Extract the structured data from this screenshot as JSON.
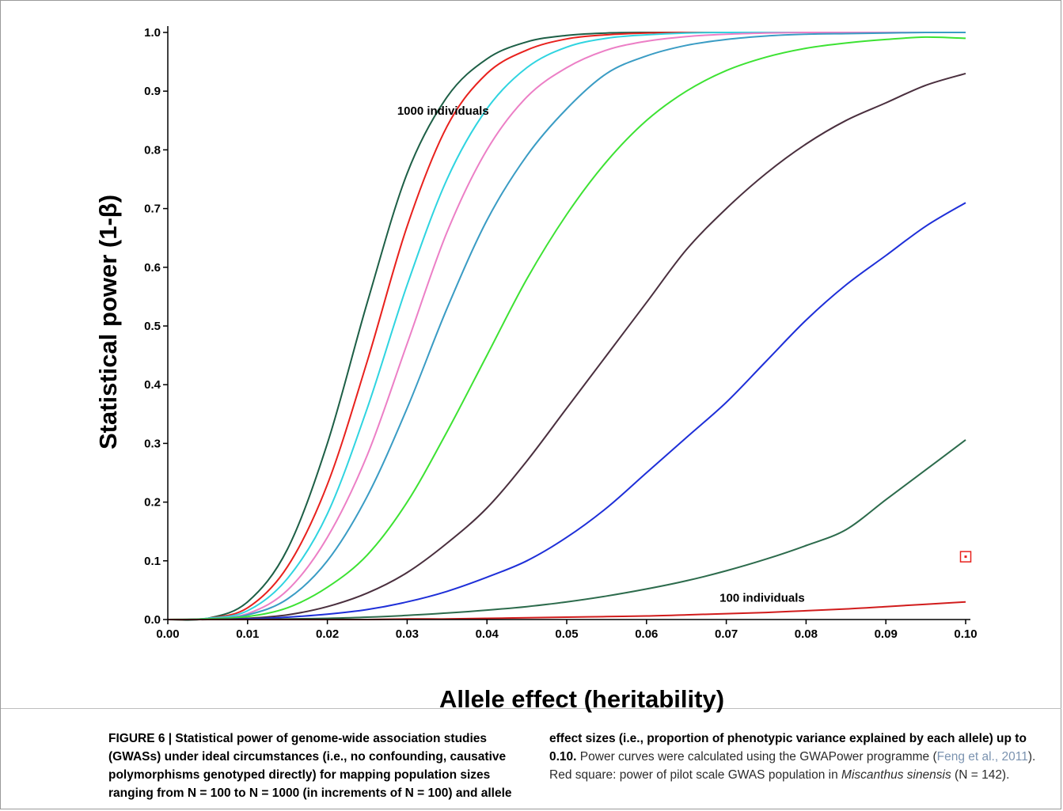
{
  "chart_data": {
    "type": "line",
    "xlabel": "Allele effect (heritability)",
    "ylabel": "Statistical power (1-β)",
    "xlim": [
      0.0,
      0.1
    ],
    "ylim": [
      0.0,
      1.0
    ],
    "xticks": [
      "0.00",
      "0.01",
      "0.02",
      "0.03",
      "0.04",
      "0.05",
      "0.06",
      "0.07",
      "0.08",
      "0.09",
      "0.10"
    ],
    "yticks": [
      "0.0",
      "0.1",
      "0.2",
      "0.3",
      "0.4",
      "0.5",
      "0.6",
      "0.7",
      "0.8",
      "0.9",
      "1.0"
    ],
    "grid": false,
    "x": [
      0.0,
      0.005,
      0.01,
      0.015,
      0.02,
      0.025,
      0.03,
      0.035,
      0.04,
      0.045,
      0.05,
      0.055,
      0.06,
      0.065,
      0.07,
      0.075,
      0.08,
      0.085,
      0.09,
      0.095,
      0.1
    ],
    "series": [
      {
        "color": "#1d5f46",
        "values": [
          0,
          0.002,
          0.03,
          0.12,
          0.3,
          0.54,
          0.76,
          0.89,
          0.955,
          0.984,
          0.995,
          0.999,
          1.0,
          1.0,
          1.0,
          1.0,
          1.0,
          1.0,
          1.0,
          1.0,
          1.0
        ]
      },
      {
        "color": "#e8211d",
        "values": [
          0,
          0.002,
          0.02,
          0.09,
          0.23,
          0.44,
          0.67,
          0.84,
          0.93,
          0.97,
          0.989,
          0.996,
          0.999,
          1.0,
          1.0,
          1.0,
          1.0,
          1.0,
          1.0,
          1.0,
          1.0
        ]
      },
      {
        "color": "#2fd4e0",
        "values": [
          0,
          0.002,
          0.015,
          0.07,
          0.18,
          0.36,
          0.57,
          0.75,
          0.87,
          0.94,
          0.975,
          0.99,
          0.996,
          0.999,
          1.0,
          1.0,
          1.0,
          1.0,
          1.0,
          1.0,
          1.0
        ]
      },
      {
        "color": "#ec7fc6",
        "values": [
          0,
          0.001,
          0.01,
          0.05,
          0.14,
          0.28,
          0.47,
          0.66,
          0.8,
          0.89,
          0.94,
          0.97,
          0.985,
          0.993,
          0.997,
          0.999,
          1.0,
          1.0,
          1.0,
          1.0,
          1.0
        ]
      },
      {
        "color": "#3a9cc4",
        "values": [
          0,
          0.001,
          0.008,
          0.035,
          0.1,
          0.21,
          0.36,
          0.53,
          0.68,
          0.79,
          0.87,
          0.93,
          0.96,
          0.978,
          0.988,
          0.994,
          0.997,
          0.998,
          0.999,
          1.0,
          1.0
        ]
      },
      {
        "color": "#3de233",
        "values": [
          0,
          0.001,
          0.005,
          0.02,
          0.055,
          0.11,
          0.2,
          0.32,
          0.45,
          0.58,
          0.69,
          0.78,
          0.85,
          0.9,
          0.935,
          0.958,
          0.973,
          0.982,
          0.988,
          0.992,
          0.99
        ]
      },
      {
        "color": "#4a2f3e",
        "values": [
          0,
          0.0,
          0.002,
          0.008,
          0.022,
          0.045,
          0.08,
          0.13,
          0.19,
          0.27,
          0.36,
          0.45,
          0.54,
          0.63,
          0.7,
          0.76,
          0.81,
          0.85,
          0.88,
          0.91,
          0.93
        ]
      },
      {
        "color": "#1e2fd8",
        "values": [
          0,
          0.0,
          0.001,
          0.004,
          0.009,
          0.017,
          0.03,
          0.048,
          0.072,
          0.1,
          0.14,
          0.19,
          0.25,
          0.31,
          0.37,
          0.44,
          0.51,
          0.57,
          0.62,
          0.67,
          0.71
        ]
      },
      {
        "color": "#2c6b4c",
        "values": [
          0,
          0.0,
          0.0,
          0.001,
          0.002,
          0.004,
          0.007,
          0.011,
          0.016,
          0.022,
          0.03,
          0.04,
          0.052,
          0.066,
          0.083,
          0.103,
          0.126,
          0.153,
          0.204,
          0.255,
          0.306
        ]
      },
      {
        "color": "#d11c1c",
        "values": [
          0,
          0.0,
          0.0,
          0.0,
          0.0,
          0.0,
          0.001,
          0.001,
          0.002,
          0.003,
          0.004,
          0.005,
          0.006,
          0.008,
          0.01,
          0.012,
          0.015,
          0.018,
          0.022,
          0.026,
          0.03
        ]
      }
    ],
    "annotations": [
      {
        "text": "1000 individuals",
        "x": 0.0345,
        "y": 0.86
      },
      {
        "text": "100 individuals",
        "x": 0.0745,
        "y": 0.03
      }
    ],
    "marker": {
      "shape": "square",
      "color": "#e8211d",
      "x": 0.1,
      "y": 0.107
    }
  },
  "caption": {
    "col1_bold": "FIGURE 6 | Statistical power of genome-wide association studies (GWASs) under ideal circumstances (i.e., no confounding, causative polymorphisms genotyped directly) for mapping population sizes ranging from N = 100 to N = 1000 (in increments of N = 100) and allele",
    "col2_bold": "effect sizes (i.e., proportion of phenotypic variance explained by each allele) up to 0.10.",
    "col2_text1": " Power curves were calculated using the GWAPower programme (",
    "col2_link": "Feng et al., 2011",
    "col2_text2": "). Red square: power of pilot scale GWAS population in ",
    "col2_italic": "Miscanthus sinensis",
    "col2_text3": " (N = 142)."
  }
}
